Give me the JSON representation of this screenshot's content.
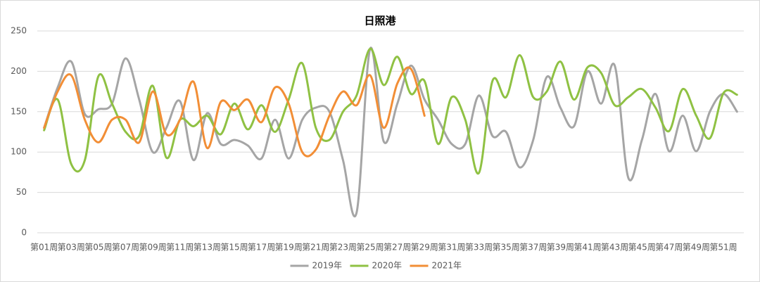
{
  "chart_data": {
    "type": "line",
    "title": "日照港",
    "categories": [
      "第01周",
      null,
      "第03周",
      null,
      "第05周",
      null,
      "第07周",
      null,
      "第09周",
      null,
      "第11周",
      null,
      "第13周",
      null,
      "第15周",
      null,
      "第17周",
      null,
      "第19周",
      null,
      "第21周",
      null,
      "第23周",
      null,
      "第25周",
      null,
      "第27周",
      null,
      "第29周",
      null,
      "第31周",
      null,
      "第33周",
      null,
      "第35周",
      null,
      "第37周",
      null,
      "第39周",
      null,
      "第41周",
      null,
      "第43周",
      null,
      "第45周",
      null,
      "第47周",
      null,
      "第49周",
      null,
      "第51周",
      null
    ],
    "series": [
      {
        "name": "2019年",
        "color": "#a5a5a5",
        "values": [
          130,
          180,
          212,
          147,
          153,
          160,
          216,
          165,
          100,
          130,
          163,
          90,
          148,
          110,
          115,
          108,
          92,
          140,
          92,
          140,
          155,
          150,
          90,
          25,
          228,
          113,
          160,
          207,
          165,
          140,
          110,
          110,
          170,
          120,
          125,
          81,
          115,
          193,
          155,
          132,
          200,
          160,
          207,
          68,
          115,
          172,
          101,
          145,
          101,
          150,
          172,
          150
        ]
      },
      {
        "name": "2020年",
        "color": "#8fc143",
        "values": [
          127,
          165,
          85,
          90,
          194,
          160,
          125,
          120,
          182,
          93,
          140,
          132,
          145,
          122,
          160,
          128,
          158,
          125,
          165,
          210,
          130,
          115,
          150,
          170,
          228,
          183,
          218,
          172,
          188,
          110,
          168,
          140,
          74,
          188,
          168,
          220,
          168,
          175,
          212,
          165,
          205,
          198,
          158,
          168,
          178,
          155,
          126,
          178,
          145,
          117,
          173,
          171
        ]
      },
      {
        "name": "2021年",
        "color": "#f28e36",
        "values": [
          130,
          175,
          195,
          140,
          112,
          140,
          140,
          112,
          175,
          122,
          140,
          187,
          105,
          162,
          152,
          165,
          137,
          180,
          160,
          100,
          103,
          145,
          175,
          158,
          195,
          130,
          185,
          203,
          145,
          null,
          null,
          null,
          null,
          null,
          null,
          null,
          null,
          null,
          null,
          null,
          null,
          null,
          null,
          null,
          null,
          null,
          null,
          null,
          null,
          null,
          null,
          null
        ]
      }
    ],
    "ylim": [
      0,
      250
    ],
    "yticks": [
      0,
      50,
      100,
      150,
      200,
      250
    ],
    "grid": true,
    "legend": "bottom"
  }
}
